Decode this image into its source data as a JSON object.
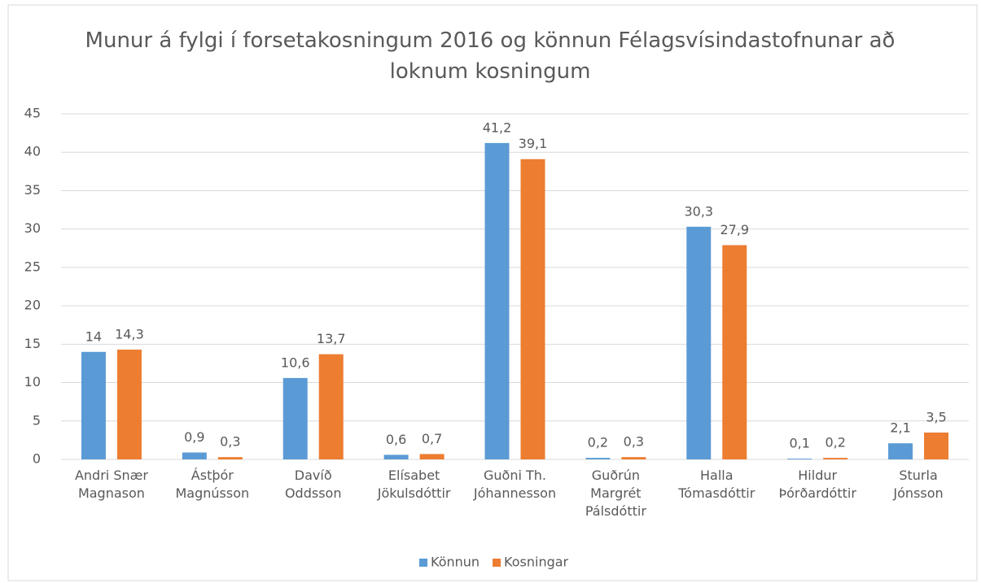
{
  "chart_data": {
    "type": "bar",
    "title": "Munur á fylgi í forsetakosningum 2016 og könnun Félagsvísindastofnunar að loknum kosningum",
    "categories": [
      "Andri Snær Magnason",
      "Ástþór Magnússon",
      "Davíð Oddsson",
      "Elísabet Jökulsdóttir",
      "Guðni Th. Jóhannesson",
      "Guðrún Margrét Pálsdóttir",
      "Halla Tómasdóttir",
      "Hildur Þórðardóttir",
      "Sturla Jónsson"
    ],
    "series": [
      {
        "name": "Könnun",
        "color": "#5b9bd5",
        "values": [
          14,
          0.9,
          10.6,
          0.6,
          41.2,
          0.2,
          30.3,
          0.1,
          2.1
        ],
        "value_labels": [
          "14",
          "0,9",
          "10,6",
          "0,6",
          "41,2",
          "0,2",
          "30,3",
          "0,1",
          "2,1"
        ]
      },
      {
        "name": "Kosningar",
        "color": "#ed7d31",
        "values": [
          14.3,
          0.3,
          13.7,
          0.7,
          39.1,
          0.3,
          27.9,
          0.2,
          3.5
        ],
        "value_labels": [
          "14,3",
          "0,3",
          "13,7",
          "0,7",
          "39,1",
          "0,3",
          "27,9",
          "0,2",
          "3,5"
        ]
      }
    ],
    "ylim": [
      0,
      45
    ],
    "yticks": [
      0,
      5,
      10,
      15,
      20,
      25,
      30,
      35,
      40,
      45
    ],
    "grid": true,
    "legend": "bottom"
  }
}
